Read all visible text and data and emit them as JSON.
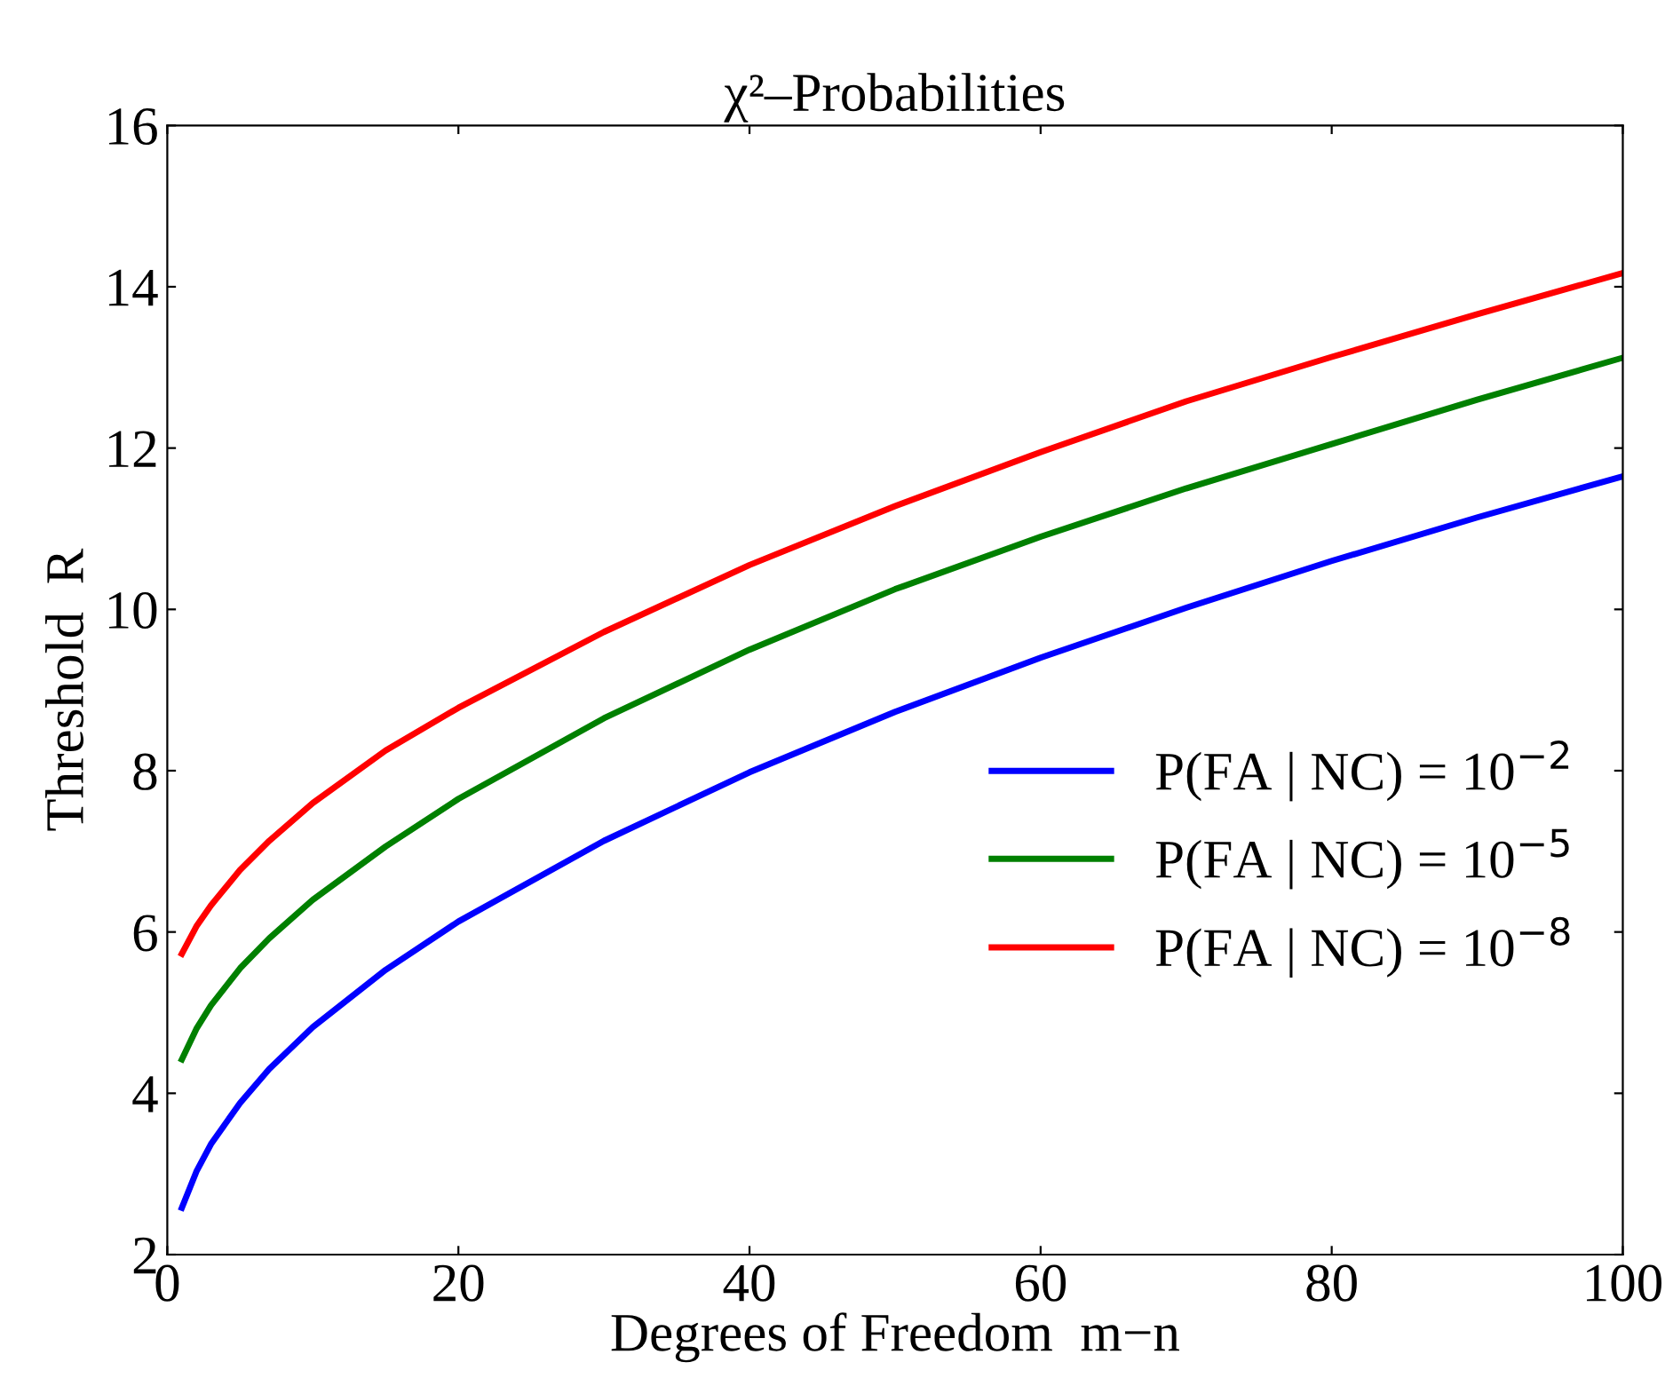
{
  "chart_data": {
    "type": "line",
    "title": "χ²–Probabilities",
    "xlabel": "Degrees of Freedom  m−n",
    "ylabel": "Threshold  R",
    "x": [
      1,
      2,
      3,
      5,
      7,
      10,
      15,
      20,
      30,
      40,
      50,
      60,
      70,
      80,
      90,
      100
    ],
    "series": [
      {
        "name": "P(FA | NC) = 10$^{−2}$",
        "color": "#0000ff",
        "values": [
          2.58,
          3.03,
          3.37,
          3.88,
          4.3,
          4.82,
          5.53,
          6.13,
          7.13,
          7.98,
          8.73,
          9.4,
          10.02,
          10.6,
          11.14,
          11.65
        ]
      },
      {
        "name": "P(FA | NC) = 10$^{−5}$",
        "color": "#008000",
        "values": [
          4.42,
          4.8,
          5.09,
          5.55,
          5.92,
          6.4,
          7.06,
          7.65,
          8.65,
          9.5,
          10.25,
          10.9,
          11.5,
          12.05,
          12.6,
          13.12
        ]
      },
      {
        "name": "P(FA | NC) = 10$^{−8}$",
        "color": "#ff0000",
        "values": [
          5.73,
          6.07,
          6.33,
          6.77,
          7.13,
          7.6,
          8.25,
          8.78,
          9.72,
          10.55,
          11.28,
          11.95,
          12.58,
          13.13,
          13.66,
          14.17
        ]
      }
    ],
    "xlim": [
      0,
      100
    ],
    "xticks": [
      0,
      20,
      40,
      60,
      80,
      100
    ],
    "ylim": [
      2,
      16
    ],
    "yticks": [
      2,
      4,
      6,
      8,
      10,
      12,
      14,
      16
    ],
    "legend": "right",
    "marker": "none",
    "line_style": "solid",
    "grid": false
  }
}
